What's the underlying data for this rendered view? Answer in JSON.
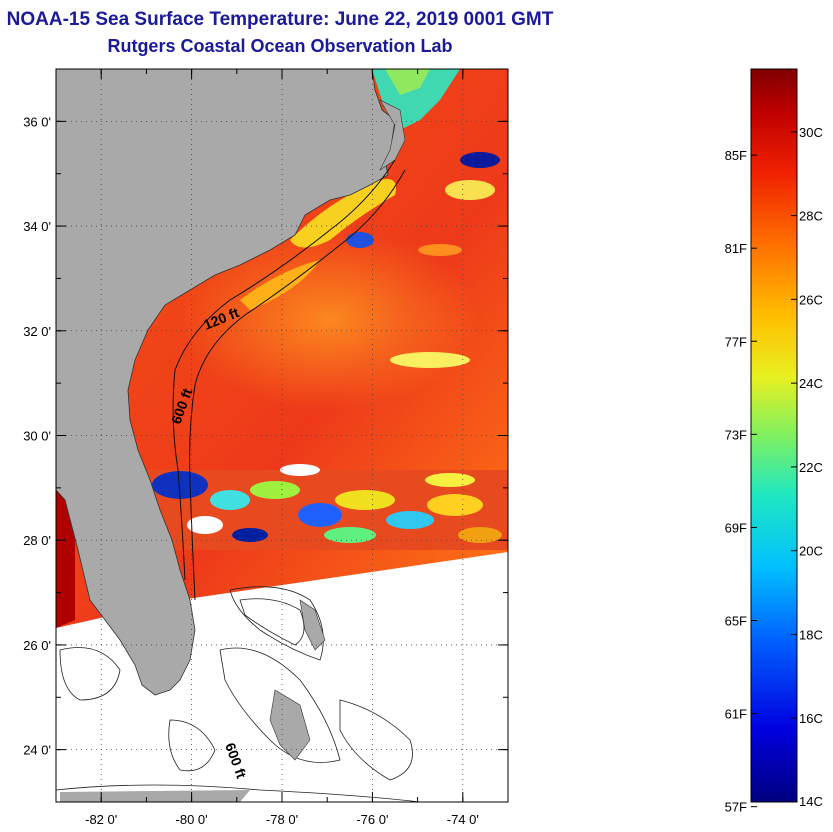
{
  "header": {
    "title": "NOAA-15 Sea Surface Temperature:  June 22, 2019 0001 GMT",
    "subtitle": "Rutgers Coastal Ocean Observation Lab"
  },
  "map": {
    "lat_ticks": [
      "36 0'",
      "34 0'",
      "32 0'",
      "30 0'",
      "28 0'",
      "26 0'",
      "24 0'"
    ],
    "lat_values": [
      36,
      34,
      32,
      30,
      28,
      26,
      24
    ],
    "lon_ticks": [
      "-82 0'",
      "-80 0'",
      "-78 0'",
      "-76 0'",
      "-74 0'"
    ],
    "lon_values": [
      -82,
      -80,
      -78,
      -76,
      -74
    ],
    "lat_range": [
      23,
      37
    ],
    "lon_range": [
      -83,
      -73
    ],
    "contour_labels": [
      "120 ft",
      "600 ft",
      "600 ft"
    ],
    "grid": true
  },
  "colorbar": {
    "fahrenheit_labels": [
      "85F",
      "81F",
      "77F",
      "73F",
      "69F",
      "65F",
      "61F",
      "57F"
    ],
    "celsius_labels": [
      "30C",
      "28C",
      "26C",
      "24C",
      "22C",
      "20C",
      "18C",
      "16C",
      "14C"
    ],
    "celsius_values": [
      30,
      28,
      26,
      24,
      22,
      20,
      18,
      16,
      14
    ],
    "fahrenheit_values": [
      85,
      81,
      77,
      73,
      69,
      65,
      61,
      57
    ],
    "range_c": [
      14,
      31.5
    ]
  },
  "colors": {
    "land": "#a9a9a9",
    "title": "#1a1a9a",
    "warm": "#e8301a",
    "cold": "#0a1a9a"
  }
}
